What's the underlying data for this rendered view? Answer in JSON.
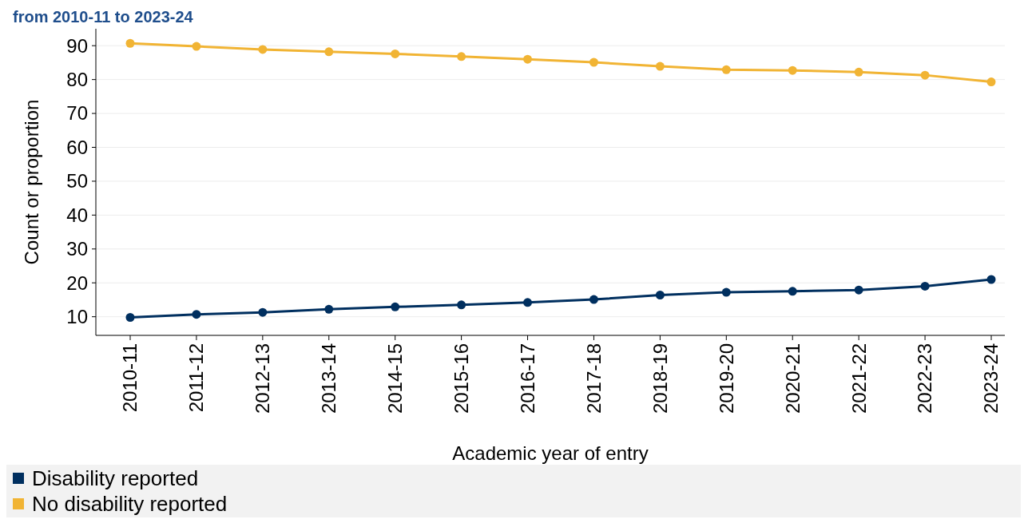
{
  "chart_data": {
    "type": "line",
    "title": "from 2010-11 to 2023-24",
    "xlabel": "Academic year of entry",
    "ylabel": "Count or proportion",
    "categories": [
      "2010-11",
      "2011-12",
      "2012-13",
      "2013-14",
      "2014-15",
      "2015-16",
      "2016-17",
      "2017-18",
      "2018-19",
      "2019-20",
      "2020-21",
      "2021-22",
      "2022-23",
      "2023-24"
    ],
    "series": [
      {
        "name": "Disability reported",
        "color": "#002f5f",
        "values": [
          9.8,
          10.7,
          11.3,
          12.2,
          12.9,
          13.5,
          14.2,
          15.1,
          16.4,
          17.2,
          17.5,
          17.9,
          19.0,
          21.0
        ]
      },
      {
        "name": "No disability reported",
        "color": "#f1b434",
        "values": [
          90.7,
          89.8,
          88.9,
          88.2,
          87.6,
          86.8,
          86.0,
          85.1,
          83.9,
          82.9,
          82.7,
          82.2,
          81.3,
          79.3
        ]
      }
    ],
    "ylim": [
      4.5,
      95
    ],
    "yticks": [
      10,
      20,
      30,
      40,
      50,
      60,
      70,
      80,
      90
    ],
    "grid": "y",
    "legend": "bottom",
    "marker": "circle",
    "line_style": "solid"
  }
}
